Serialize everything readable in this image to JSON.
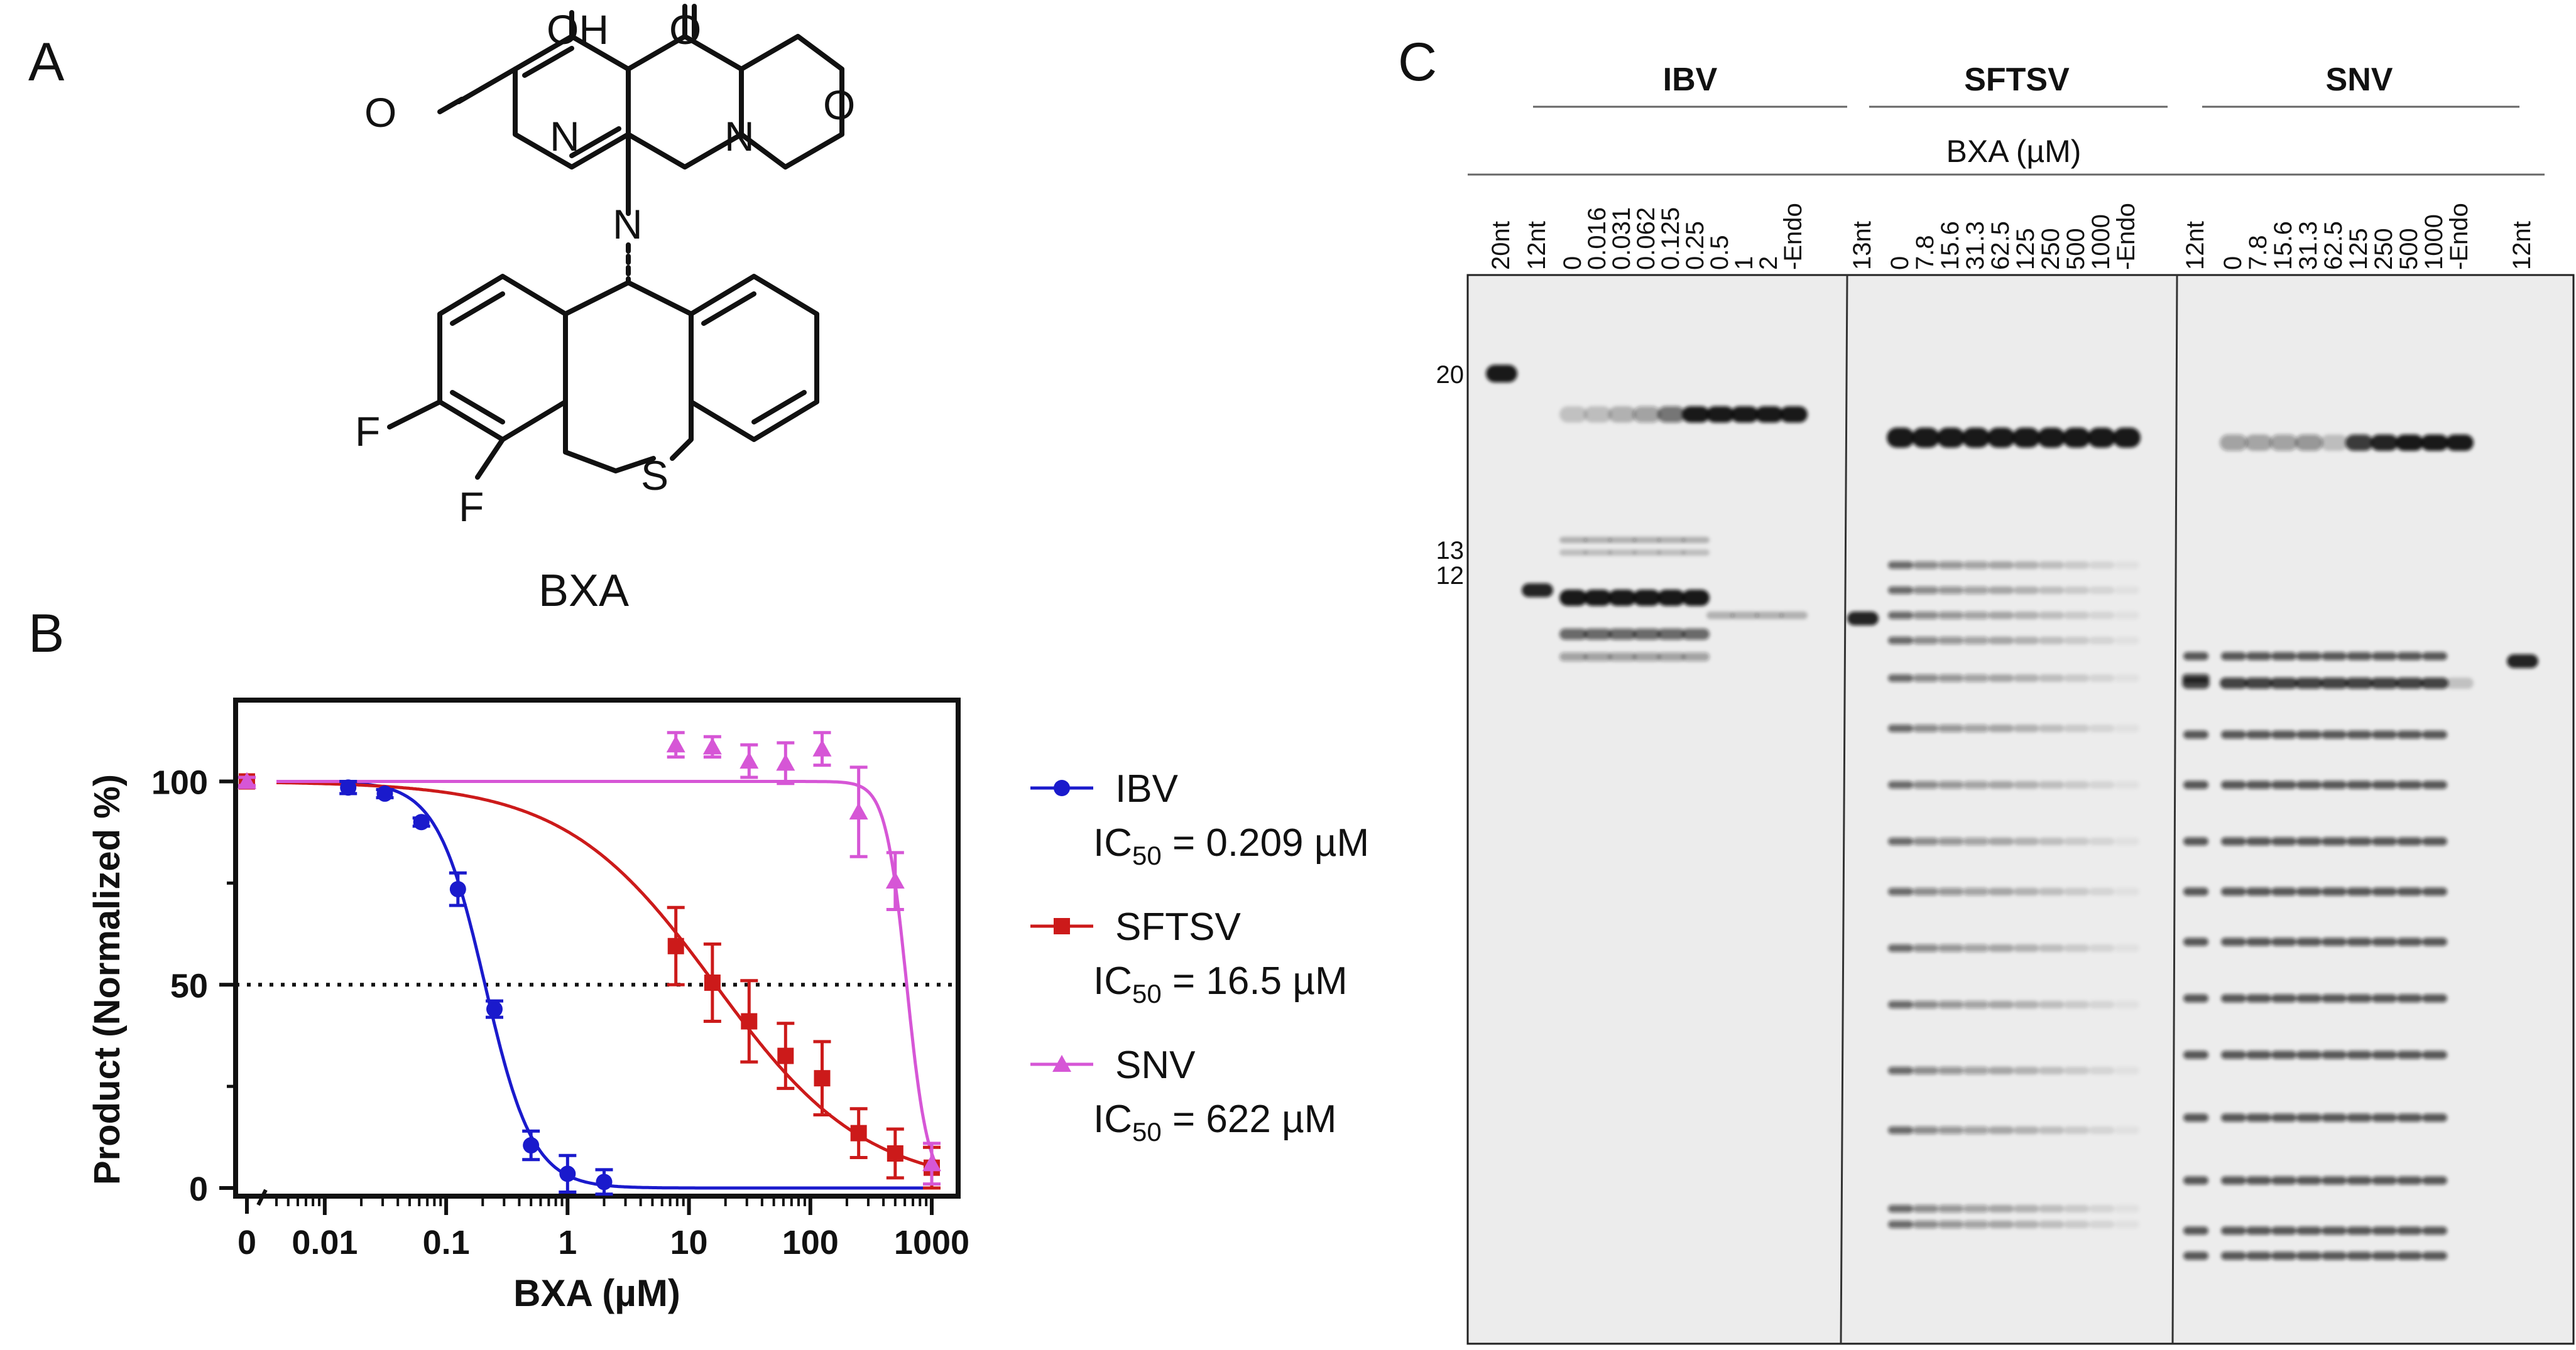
{
  "panels": {
    "a": "A",
    "b": "B",
    "c": "C"
  },
  "structure": {
    "compound": "BXA",
    "atoms": {
      "oh": "OH",
      "o_keto": "O",
      "o_amide": "O",
      "n_ring": "N",
      "n_ring2": "N",
      "n_amine": "N",
      "o_ether": "O",
      "f1": "F",
      "f2": "F",
      "s": "S"
    }
  },
  "chart_data": {
    "type": "scatter",
    "xlabel": "BXA (µM)",
    "ylabel": "Product (Normalized %)",
    "x_scale": "log",
    "xlim": [
      0.001,
      2000
    ],
    "ylim": [
      -2,
      120
    ],
    "x_ticks": [
      0.01,
      0.1,
      1,
      10,
      100,
      1000
    ],
    "x_tick_labels": [
      "0.01",
      "0.1",
      "1",
      "10",
      "100",
      "1000"
    ],
    "x_zero_label": "0",
    "y_ticks": [
      0,
      50,
      100
    ],
    "y_tick_labels": [
      "0",
      "50",
      "100"
    ],
    "reference_line": {
      "y": 50,
      "style": "dotted"
    },
    "grid": false,
    "legend_position": "right",
    "series": [
      {
        "name": "IBV",
        "ic50_label": "IC50 = 0.209 µM",
        "color": "#1a1acc",
        "marker": "circle",
        "x": [
          0,
          0.0156,
          0.03125,
          0.0625,
          0.125,
          0.25,
          0.5,
          1,
          2
        ],
        "y": [
          100,
          98.5,
          97,
          90,
          73.5,
          44,
          10.5,
          3.5,
          1.5
        ],
        "err": [
          1,
          1.5,
          1,
          1,
          4,
          2,
          3.5,
          4.5,
          3
        ],
        "fit": {
          "top": 100,
          "bottom": 0,
          "ic50": 0.209,
          "hill": 2.2
        }
      },
      {
        "name": "SFTSV",
        "ic50_label": "IC50 = 16.5 µM",
        "color": "#cc1a1a",
        "marker": "square",
        "x": [
          0,
          7.8,
          15.6,
          31.3,
          62.5,
          125,
          250,
          500,
          1000
        ],
        "y": [
          100,
          59.5,
          50.5,
          41,
          32.5,
          27,
          13.5,
          8.5,
          5
        ],
        "err": [
          1,
          9.5,
          9.5,
          10,
          8,
          9,
          6,
          6,
          5
        ],
        "fit": {
          "top": 100,
          "bottom": 0,
          "ic50": 16.5,
          "hill": 0.7
        }
      },
      {
        "name": "SNV",
        "ic50_label": "IC50 = 622 µM",
        "color": "#d656d6",
        "marker": "triangle",
        "x": [
          0,
          7.8,
          15.6,
          31.3,
          62.5,
          125,
          250,
          500,
          1000
        ],
        "y": [
          100,
          109,
          108.5,
          105,
          104.5,
          108,
          92.5,
          75.5,
          6
        ],
        "err": [
          1,
          3,
          2.5,
          4,
          5,
          4,
          11,
          7,
          5
        ],
        "fit": {
          "top": 100,
          "bottom": 0,
          "ic50": 622,
          "hill": 5
        }
      }
    ]
  },
  "legend": {
    "ic": "IC",
    "sub": "50",
    "ibv_value": "= 0.209 µM",
    "sftsv_value": "= 16.5 µM",
    "snv_value": "= 622 µM"
  },
  "gel": {
    "groups": [
      "IBV",
      "SFTSV",
      "SNV"
    ],
    "condition": "BXA (µM)",
    "lanes_ibv": [
      "20nt",
      "12nt",
      "0",
      "0.016",
      "0.031",
      "0.062",
      "0.125",
      "0.25",
      "0.5",
      "1",
      "2",
      "-Endo"
    ],
    "lanes_sftsv": [
      "13nt",
      "0",
      "7.8",
      "15.6",
      "31.3",
      "62.5",
      "125",
      "250",
      "500",
      "1000",
      "-Endo"
    ],
    "lanes_snv": [
      "12nt",
      "0",
      "7.8",
      "15.6",
      "31.3",
      "62.5",
      "125",
      "250",
      "500",
      "1000",
      "-Endo",
      "12nt"
    ],
    "markers": [
      "20",
      "13",
      "12"
    ]
  }
}
